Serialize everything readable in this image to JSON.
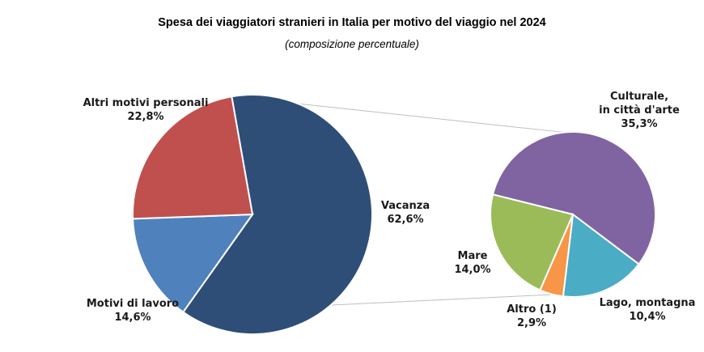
{
  "chart_data": {
    "type": "pie",
    "title": "Spesa dei viaggiatori stranieri in Italia per motivo del viaggio nel 2024",
    "subtitle": "(composizione percentuale)",
    "main_pie": {
      "slices": [
        {
          "label": "Vacanza",
          "value": 62.6,
          "value_text": "62,6%",
          "color": "#2e4e78"
        },
        {
          "label": "Motivi di lavoro",
          "value": 14.6,
          "value_text": "14,6%",
          "color": "#4f81bd"
        },
        {
          "label": "Altri motivi personali",
          "value": 22.8,
          "value_text": "22,8%",
          "color": "#c0504d"
        }
      ]
    },
    "breakdown_pie": {
      "of": "Vacanza",
      "slices": [
        {
          "label": "Culturale, in città d'arte",
          "value": 35.3,
          "value_text": "35,3%",
          "color": "#8064a2"
        },
        {
          "label": "Lago, montagna",
          "value": 10.4,
          "value_text": "10,4%",
          "color": "#4bacc6"
        },
        {
          "label": "Altro (1)",
          "value": 2.9,
          "value_text": "2,9%",
          "color": "#f79646"
        },
        {
          "label": "Mare",
          "value": 14.0,
          "value_text": "14,0%",
          "color": "#9bbb59"
        }
      ]
    }
  }
}
